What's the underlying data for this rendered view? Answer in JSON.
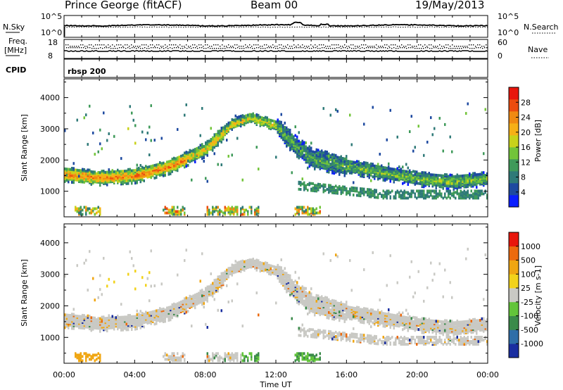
{
  "header": {
    "station": "Prince George (fitACF)",
    "beam": "Beam 00",
    "date": "19/May/2013"
  },
  "strips": {
    "nsky_label": "N.Sky",
    "nsky_ticks": [
      "10^5",
      "10^0"
    ],
    "nsearch_label": "N.Search",
    "nsearch_ticks": [
      "10^5",
      "10^0"
    ],
    "freq_label_1": "Freq.",
    "freq_label_2": "[MHz]",
    "freq_ticks": [
      "18",
      "8"
    ],
    "nave_label": "Nave",
    "nave_ticks": [
      "60",
      "0"
    ],
    "cpid_label": "CPID",
    "cpid_value": "rbsp 200"
  },
  "chart_data": [
    {
      "type": "heatmap",
      "panel": "power",
      "ylabel": "Slant Range [km]",
      "xlabel": "Time UT",
      "x_ticks": [
        "00:00",
        "04:00",
        "08:00",
        "12:00",
        "16:00",
        "20:00",
        "00:00"
      ],
      "x_range_hours": [
        0,
        24
      ],
      "y_ticks": [
        1000,
        2000,
        3000,
        4000
      ],
      "ylim": [
        180,
        4600
      ],
      "colorbar": {
        "label": "Power [dB]",
        "ticks": [
          "28",
          "24",
          "20",
          "16",
          "12",
          "8",
          "4"
        ],
        "range": [
          0,
          30
        ],
        "colors": [
          "#0a1eff",
          "#1e4aa0",
          "#2f7a78",
          "#3f9a5a",
          "#72c43a",
          "#c8d21a",
          "#f6b016",
          "#f08a12",
          "#ec4c0e",
          "#e8160c"
        ]
      },
      "echo_bands": [
        {
          "name": "main",
          "points": [
            [
              0,
              1550
            ],
            [
              2,
              1430
            ],
            [
              4,
              1500
            ],
            [
              6,
              1800
            ],
            [
              8,
              2350
            ],
            [
              9.5,
              3150
            ],
            [
              10.5,
              3350
            ],
            [
              12,
              3100
            ],
            [
              13,
              2500
            ],
            [
              14,
              2050
            ],
            [
              16,
              1800
            ],
            [
              18,
              1600
            ],
            [
              20,
              1400
            ],
            [
              22,
              1300
            ],
            [
              24,
              1400
            ]
          ]
        }
      ]
    },
    {
      "type": "heatmap",
      "panel": "velocity",
      "ylabel": "Slant Range [km]",
      "xlabel": "Time UT",
      "x_ticks": [
        "00:00",
        "04:00",
        "08:00",
        "12:00",
        "16:00",
        "20:00",
        "00:00"
      ],
      "x_range_hours": [
        0,
        24
      ],
      "y_ticks": [
        1000,
        2000,
        3000,
        4000
      ],
      "ylim": [
        180,
        4600
      ],
      "colorbar": {
        "label": "Velocity [m s-1]",
        "ticks": [
          "1000",
          "500",
          "100",
          "25",
          "-25",
          "-100",
          "-500",
          "-1000"
        ],
        "colors": [
          "#1a2ea0",
          "#2f6ea8",
          "#3a8a4a",
          "#62c43a",
          "#c9c9c4",
          "#f2d21a",
          "#f0a612",
          "#ec6a0e",
          "#e8160c"
        ]
      }
    }
  ]
}
